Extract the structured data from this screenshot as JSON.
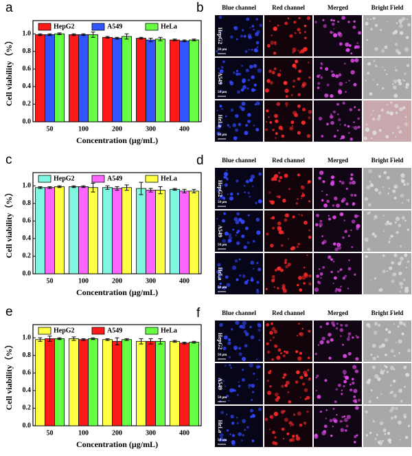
{
  "chart_data": [
    {
      "type": "bar",
      "panel_label": "a",
      "y_label": "Cell viability（%）",
      "x_label": "Concentration (μg/mL)",
      "categories": [
        "50",
        "100",
        "200",
        "300",
        "400"
      ],
      "series": [
        {
          "name": "HepG2",
          "color": "#ff1a1a",
          "values": [
            0.99,
            0.99,
            0.96,
            0.95,
            0.93
          ],
          "errors": [
            0.01,
            0.01,
            0.01,
            0.01,
            0.01
          ]
        },
        {
          "name": "A549",
          "color": "#3355ff",
          "values": [
            0.99,
            0.99,
            0.95,
            0.93,
            0.92
          ],
          "errors": [
            0.01,
            0.01,
            0.01,
            0.02,
            0.01
          ]
        },
        {
          "name": "HeLa",
          "color": "#66ff44",
          "values": [
            1.0,
            0.99,
            0.97,
            0.94,
            0.93
          ],
          "errors": [
            0.01,
            0.03,
            0.03,
            0.02,
            0.01
          ]
        }
      ],
      "ylim": [
        0,
        1.15
      ],
      "yticks": [
        {
          "value": 0,
          "label": "0.0"
        },
        0.2,
        0.4,
        0.6,
        0.8,
        {
          "value": 1,
          "label": "1.0"
        }
      ],
      "legend": "top"
    },
    {
      "type": "bar",
      "panel_label": "c",
      "y_label": "Cell viability（%）",
      "x_label": "Concentration (μg/mL)",
      "categories": [
        "50",
        "100",
        "200",
        "300",
        "400"
      ],
      "series": [
        {
          "name": "HepG2",
          "color": "#80f5e0",
          "values": [
            0.98,
            0.99,
            0.98,
            0.97,
            0.96
          ],
          "errors": [
            0.01,
            0.01,
            0.02,
            0.07,
            0.01
          ]
        },
        {
          "name": "A549",
          "color": "#ff66ff",
          "values": [
            0.98,
            0.99,
            0.97,
            0.95,
            0.94
          ],
          "errors": [
            0.01,
            0.01,
            0.02,
            0.02,
            0.02
          ]
        },
        {
          "name": "HeLa",
          "color": "#ffff44",
          "values": [
            0.99,
            0.98,
            0.98,
            0.95,
            0.94
          ],
          "errors": [
            0.01,
            0.05,
            0.03,
            0.04,
            0.02
          ]
        }
      ],
      "ylim": [
        0,
        1.15
      ],
      "yticks": [
        {
          "value": 0,
          "label": "0.0"
        },
        0.2,
        0.4,
        0.6,
        0.8,
        {
          "value": 1,
          "label": "1.0"
        }
      ],
      "legend": "top"
    },
    {
      "type": "bar",
      "panel_label": "e",
      "y_label": "Cell viability（%）",
      "x_label": "Concentration (μg/mL)",
      "categories": [
        "50",
        "100",
        "200",
        "300",
        "400"
      ],
      "series": [
        {
          "name": "HepG2",
          "color": "#ffff44",
          "values": [
            0.98,
            0.99,
            0.98,
            0.96,
            0.96
          ],
          "errors": [
            0.02,
            0.02,
            0.01,
            0.03,
            0.01
          ]
        },
        {
          "name": "A549",
          "color": "#ff1a1a",
          "values": [
            0.99,
            0.98,
            0.96,
            0.96,
            0.94
          ],
          "errors": [
            0.03,
            0.01,
            0.04,
            0.03,
            0.01
          ]
        },
        {
          "name": "HeLa",
          "color": "#66ff44",
          "values": [
            0.99,
            0.99,
            0.98,
            0.96,
            0.95
          ],
          "errors": [
            0.01,
            0.01,
            0.01,
            0.03,
            0.01
          ]
        }
      ],
      "ylim": [
        0,
        1.15
      ],
      "yticks": [
        {
          "value": 0,
          "label": "0.0"
        },
        0.2,
        0.4,
        0.6,
        0.8,
        {
          "value": 1,
          "label": "1.0"
        }
      ],
      "legend": "top"
    }
  ],
  "image_panels": [
    {
      "label": "b",
      "columns": [
        "Blue channel",
        "Red channel",
        "Merged",
        "Bright Field"
      ],
      "rows": [
        "HepG2",
        "A549",
        "HeLa"
      ],
      "scale_bar": "50 μm"
    },
    {
      "label": "d",
      "columns": [
        "Blue channel",
        "Red channel",
        "Merged",
        "Bright Field"
      ],
      "rows": [
        "HepG2",
        "A549",
        "HeLa"
      ],
      "scale_bar": "50 μm"
    },
    {
      "label": "f",
      "columns": [
        "Blue channel",
        "Red channel",
        "Merged",
        "Bright Field"
      ],
      "rows": [
        "HepG2",
        "A549",
        "HeLa"
      ],
      "scale_bar": "50 μm"
    }
  ]
}
